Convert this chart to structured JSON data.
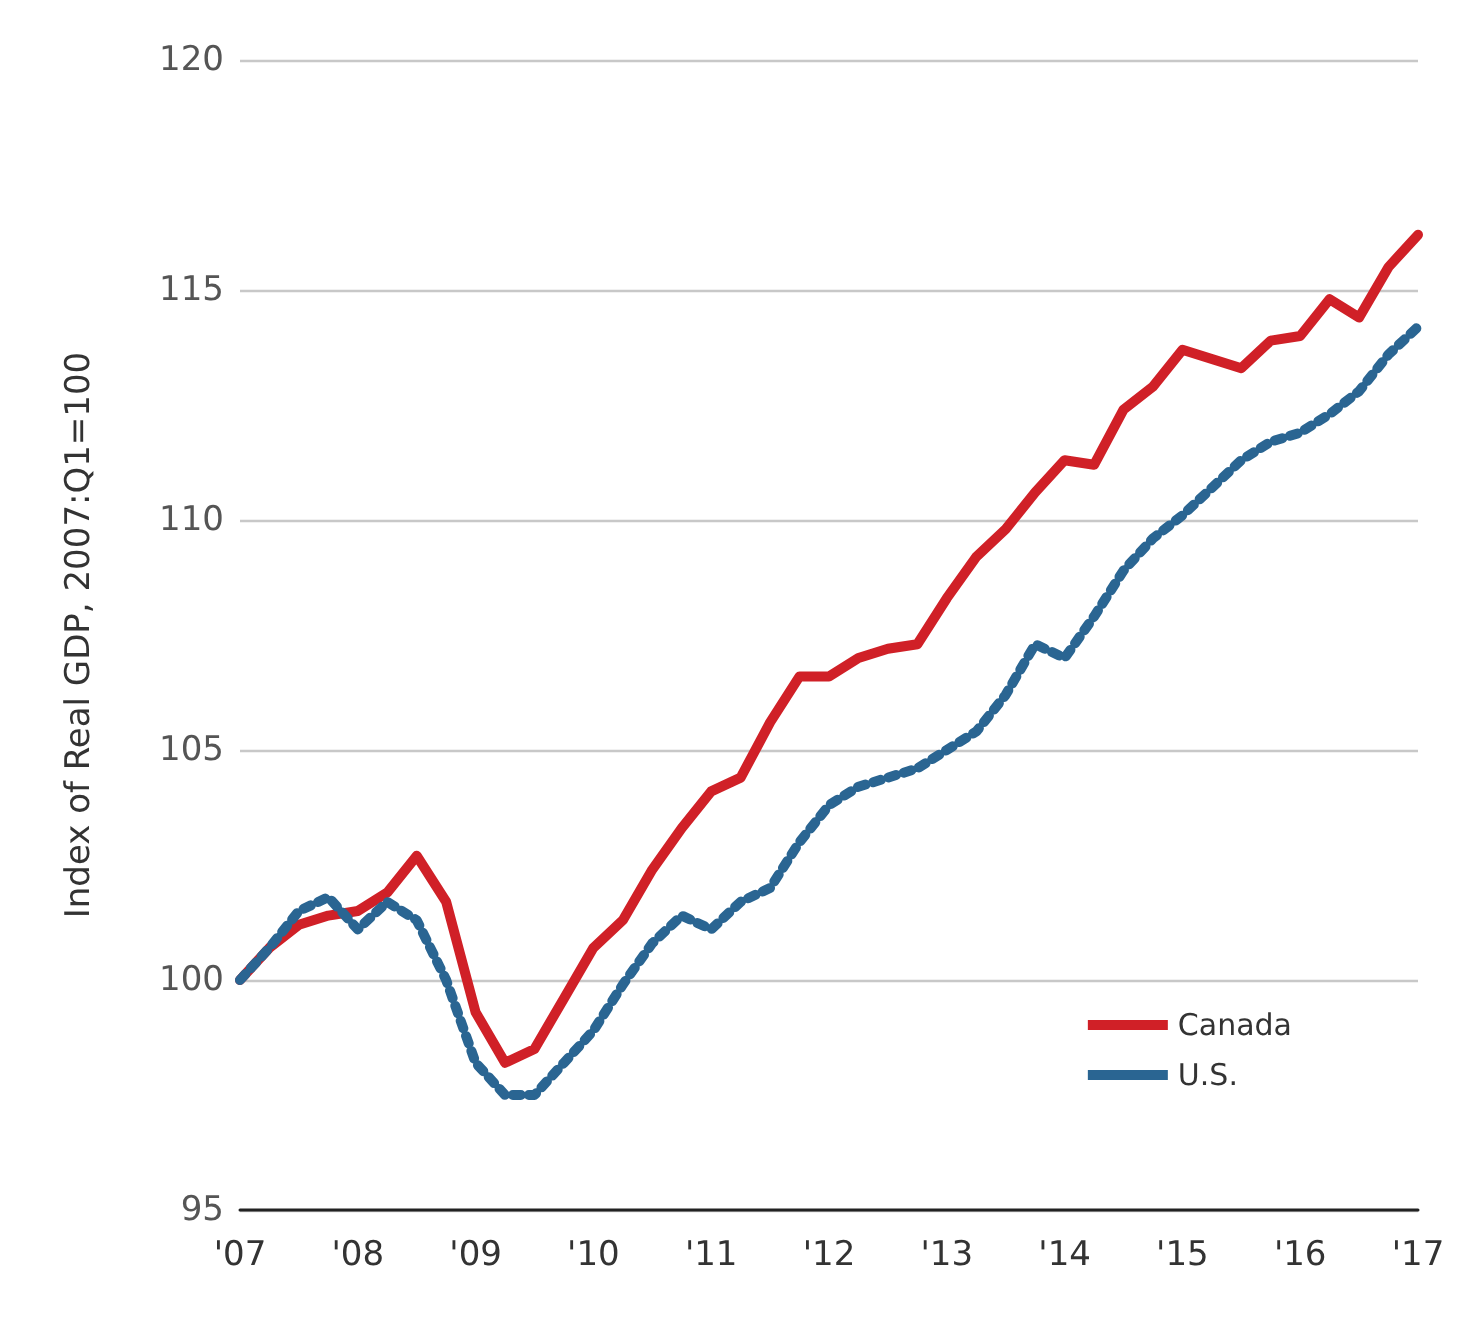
{
  "chart_data": {
    "type": "line",
    "ylabel": "Index of Real GDP, 2007:Q1=100",
    "x": [
      2007,
      2007.25,
      2007.5,
      2007.75,
      2008,
      2008.25,
      2008.5,
      2008.75,
      2009,
      2009.25,
      2009.5,
      2009.75,
      2010,
      2010.25,
      2010.5,
      2010.75,
      2011,
      2011.25,
      2011.5,
      2011.75,
      2012,
      2012.25,
      2012.5,
      2012.75,
      2013,
      2013.25,
      2013.5,
      2013.75,
      2014,
      2014.25,
      2014.5,
      2014.75,
      2015,
      2015.25,
      2015.5,
      2015.75,
      2016,
      2016.25,
      2016.5,
      2016.75,
      2017
    ],
    "series": [
      {
        "name": "Canada",
        "color": "#d02027",
        "line_style": "solid",
        "values": [
          100.0,
          100.7,
          101.2,
          101.4,
          101.5,
          101.9,
          102.7,
          101.7,
          99.3,
          98.2,
          98.5,
          99.6,
          100.7,
          101.3,
          102.4,
          103.3,
          104.1,
          104.4,
          105.6,
          106.6,
          106.6,
          107.0,
          107.2,
          107.3,
          108.3,
          109.2,
          109.8,
          110.6,
          111.3,
          111.2,
          112.4,
          112.9,
          113.7,
          113.5,
          113.3,
          113.9,
          114.0,
          114.8,
          114.4,
          115.5,
          116.2
        ]
      },
      {
        "name": "U.S.",
        "color": "#2a6592",
        "line_style": "dashed",
        "values": [
          100.0,
          100.7,
          101.5,
          101.8,
          101.1,
          101.7,
          101.3,
          100.0,
          98.2,
          97.5,
          97.5,
          98.2,
          98.9,
          99.9,
          100.8,
          101.4,
          101.1,
          101.7,
          102.0,
          103.0,
          103.8,
          104.2,
          104.4,
          104.6,
          105.0,
          105.4,
          106.2,
          107.3,
          107.0,
          107.9,
          108.9,
          109.6,
          110.1,
          110.7,
          111.3,
          111.7,
          111.9,
          112.3,
          112.8,
          113.6,
          114.2
        ]
      }
    ],
    "xlim": [
      2007,
      2017
    ],
    "xticks": [
      {
        "value": 2007,
        "label": "'07"
      },
      {
        "value": 2008,
        "label": "'08"
      },
      {
        "value": 2009,
        "label": "'09"
      },
      {
        "value": 2010,
        "label": "'10"
      },
      {
        "value": 2011,
        "label": "'11"
      },
      {
        "value": 2012,
        "label": "'12"
      },
      {
        "value": 2013,
        "label": "'13"
      },
      {
        "value": 2014,
        "label": "'14"
      },
      {
        "value": 2015,
        "label": "'15"
      },
      {
        "value": 2016,
        "label": "'16"
      },
      {
        "value": 2017,
        "label": "'17"
      }
    ],
    "ylim": [
      95,
      120
    ],
    "yticks": [
      95,
      100,
      105,
      110,
      115,
      120
    ],
    "grid": "y",
    "legend": "bottom right",
    "marker": "none"
  }
}
